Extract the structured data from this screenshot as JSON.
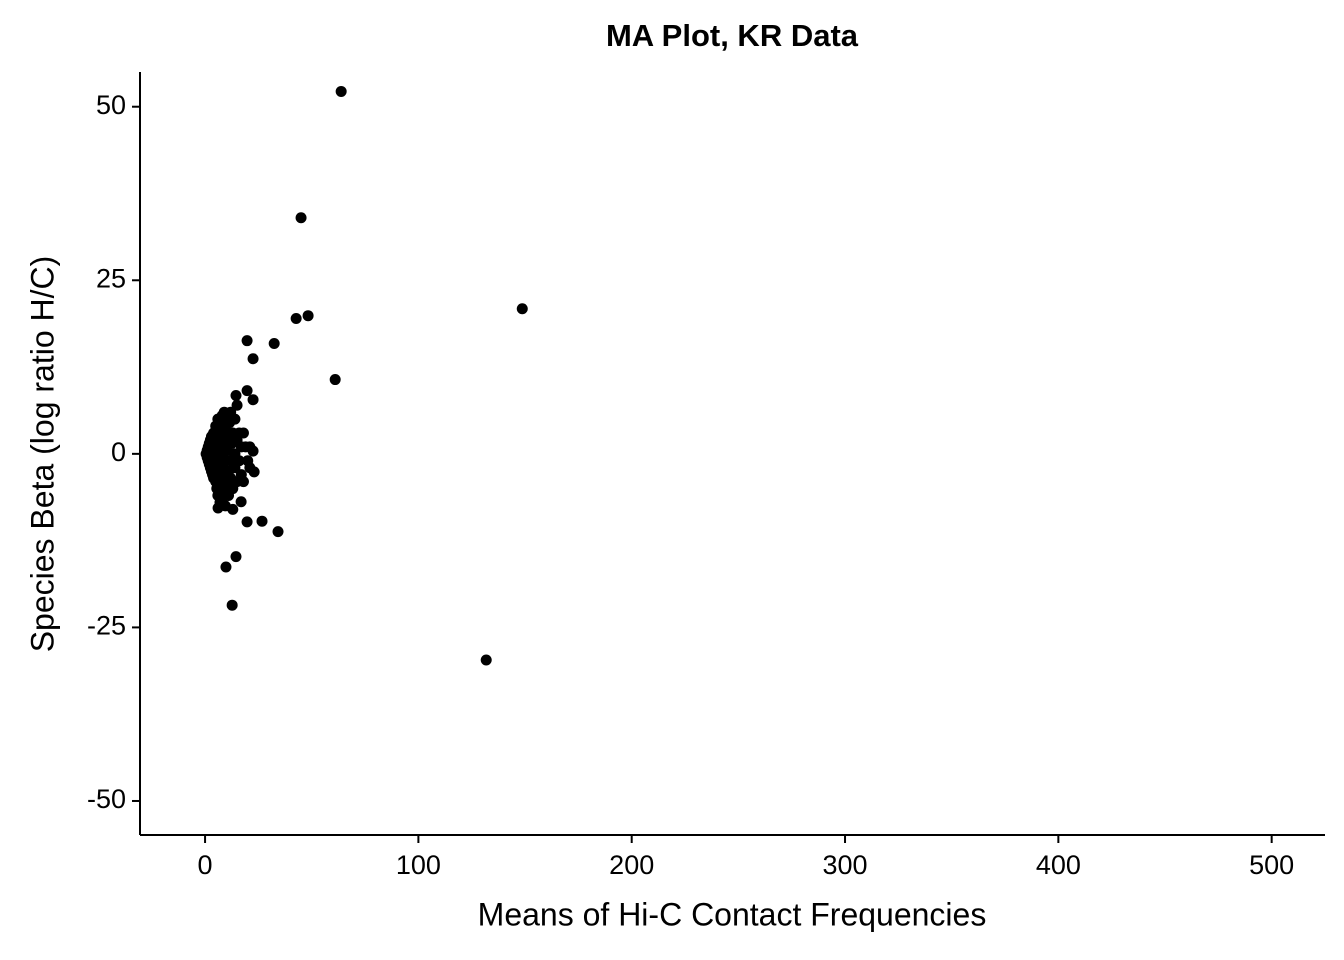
{
  "chart_data": {
    "type": "scatter",
    "title": "MA Plot, KR Data",
    "x_label": "Means of Hi-C Contact Frequencies",
    "y_label": "Species Beta (log ratio H/C)",
    "color": "#000000",
    "x": [
      63.8,
      45.0,
      148.7,
      42.7,
      48.3,
      19.7,
      32.4,
      22.5,
      61.0,
      19.7,
      22.5,
      14.5,
      26.7,
      34.2,
      19.7,
      14.5,
      9.8,
      12.7,
      131.8,
      16.9,
      23,
      22.5,
      6.1,
      0.5,
      1,
      1,
      1.5,
      1.5,
      2,
      2,
      2,
      2.5,
      2.5,
      3,
      3,
      3,
      3.5,
      3.5,
      4,
      4,
      4,
      4.5,
      4.5,
      5,
      5,
      5,
      5,
      5.5,
      5.5,
      6,
      6,
      6,
      6,
      6.5,
      6.5,
      7,
      7,
      7,
      7,
      7.5,
      7.5,
      8,
      8,
      8,
      8,
      8.5,
      8.5,
      9,
      9,
      9,
      9,
      9.5,
      9.5,
      10,
      10,
      10,
      10.5,
      10.5,
      11,
      11,
      11,
      11.5,
      12,
      12,
      12,
      12.5,
      13,
      13,
      13,
      14,
      14,
      14,
      15,
      15,
      15,
      16,
      16,
      17,
      17,
      18,
      18,
      19,
      20,
      21,
      21
    ],
    "values": [
      52.2,
      34.0,
      20.9,
      19.5,
      19.9,
      16.3,
      15.9,
      13.7,
      10.7,
      9.1,
      7.8,
      8.4,
      -9.7,
      -11.2,
      -9.8,
      -14.8,
      -16.3,
      -21.8,
      -29.7,
      -6.9,
      -2.6,
      0.4,
      -7.8,
      0,
      0.5,
      -0.5,
      1,
      -1,
      1.5,
      -1.5,
      0,
      2,
      -2,
      0.5,
      -2.5,
      2.5,
      -3,
      1.5,
      3,
      -3.5,
      0,
      -1,
      2,
      4,
      -4,
      -1.5,
      1,
      3,
      -5,
      5,
      -6,
      0,
      -2.5,
      2.5,
      -3.5,
      4.5,
      -5,
      1,
      -7,
      -1,
      3.5,
      5.5,
      -4,
      0,
      -6.5,
      2,
      -2,
      6,
      -3,
      1,
      -5.5,
      4,
      -7.5,
      -1,
      3,
      -4.5,
      5,
      0.5,
      -2.5,
      2,
      -6,
      4.5,
      -1,
      6,
      -3.5,
      1.5,
      -5,
      3,
      -8,
      0,
      5,
      -2,
      -4,
      2,
      7,
      -1,
      3,
      -3,
      1,
      -4,
      3,
      1,
      -1,
      -2,
      1
    ],
    "xlim": [
      -30.5,
      525
    ],
    "ylim": [
      -54.9,
      55
    ],
    "xticks": [
      0,
      100,
      200,
      300,
      400,
      500
    ],
    "yticks": [
      -50,
      -25,
      0,
      25,
      50
    ],
    "grid": false
  }
}
